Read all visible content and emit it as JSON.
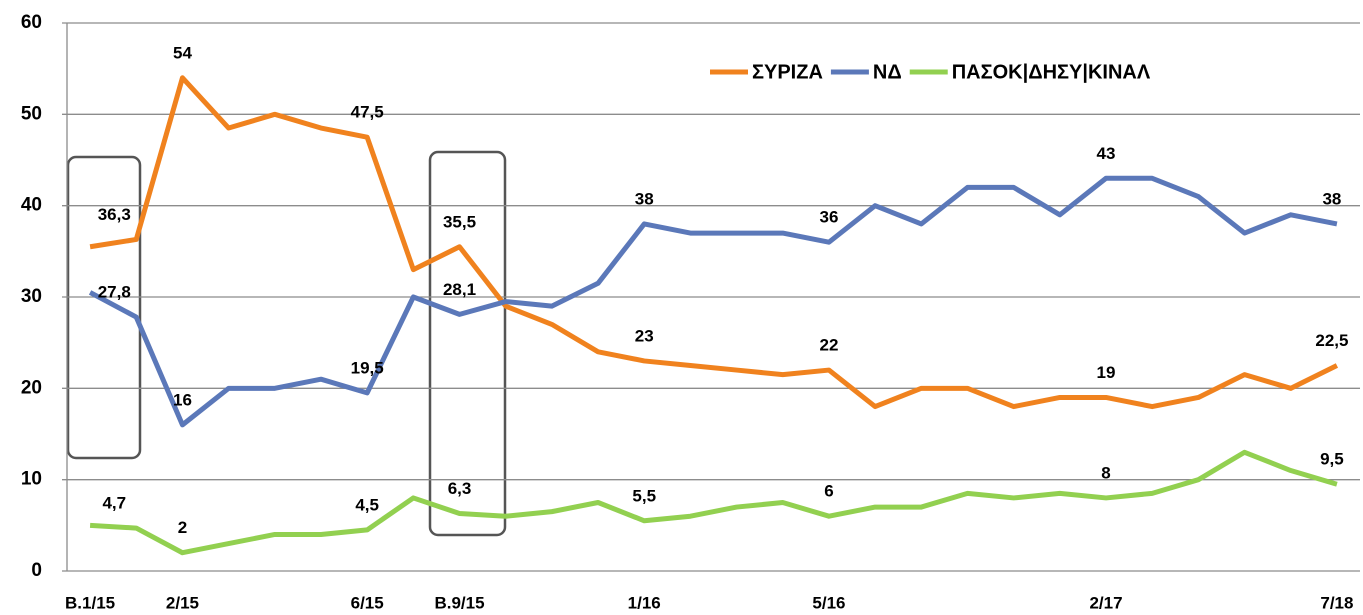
{
  "chart_data": {
    "type": "line",
    "categories": [
      "B.1/15",
      null,
      "2/15",
      null,
      null,
      null,
      "6/15",
      null,
      "B.9/15",
      null,
      null,
      null,
      "1/16",
      null,
      null,
      null,
      "5/16",
      null,
      null,
      null,
      null,
      null,
      "2/17",
      null,
      null,
      null,
      null,
      "7/18"
    ],
    "category_colors": [
      "#c00000",
      null,
      "#000000",
      null,
      null,
      null,
      "#000000",
      null,
      "#c00000",
      null,
      null,
      null,
      "#000000",
      null,
      null,
      null,
      "#000000",
      null,
      null,
      null,
      null,
      null,
      "#000000",
      null,
      null,
      null,
      null,
      "#000000"
    ],
    "series": [
      {
        "name": "ΣΥΡΙΖΑ",
        "color": "#f0821e",
        "values": [
          35.5,
          36.3,
          54,
          48.5,
          50,
          48.5,
          47.5,
          33,
          35.5,
          29,
          27,
          24,
          23,
          22.5,
          22,
          21.5,
          22,
          18,
          20,
          20,
          18,
          19,
          19,
          18,
          19,
          21.5,
          20,
          22.5
        ],
        "value_labels": [
          null,
          "36,3",
          "54",
          null,
          null,
          null,
          "47,5",
          null,
          "35,5",
          null,
          null,
          null,
          "23",
          null,
          null,
          null,
          "22",
          null,
          null,
          null,
          null,
          null,
          "19",
          null,
          null,
          null,
          null,
          "22,5"
        ]
      },
      {
        "name": "ΝΔ",
        "color": "#5b78b9",
        "values": [
          30.5,
          27.8,
          16,
          20,
          20,
          21,
          19.5,
          30,
          28.1,
          29.5,
          29,
          31.5,
          38,
          37,
          37,
          37,
          36,
          40,
          38,
          42,
          42,
          39,
          43,
          43,
          41,
          37,
          39,
          38
        ],
        "value_labels": [
          null,
          "27,8",
          "16",
          null,
          null,
          null,
          "19,5",
          null,
          "28,1",
          null,
          null,
          null,
          "38",
          null,
          null,
          null,
          "36",
          null,
          null,
          null,
          null,
          null,
          "43",
          null,
          null,
          null,
          null,
          "38"
        ]
      },
      {
        "name": "ΠΑΣΟΚ|ΔΗΣΥ|ΚΙΝΑΛ",
        "color": "#92d050",
        "values": [
          5,
          4.7,
          2,
          3,
          4,
          4,
          4.5,
          8,
          6.3,
          6,
          6.5,
          7.5,
          5.5,
          6,
          7,
          7.5,
          6,
          7,
          7,
          8.5,
          8,
          8.5,
          8,
          8.5,
          10,
          13,
          11,
          9.5
        ],
        "value_labels": [
          null,
          "4,7",
          "2",
          null,
          null,
          null,
          "4,5",
          null,
          "6,3",
          null,
          null,
          null,
          "5,5",
          null,
          null,
          null,
          "6",
          null,
          null,
          null,
          null,
          null,
          "8",
          null,
          null,
          null,
          null,
          "9,5"
        ]
      }
    ],
    "ylim": [
      0,
      60
    ],
    "yticks": [
      0,
      10,
      20,
      30,
      40,
      50,
      60
    ],
    "grid": true
  }
}
